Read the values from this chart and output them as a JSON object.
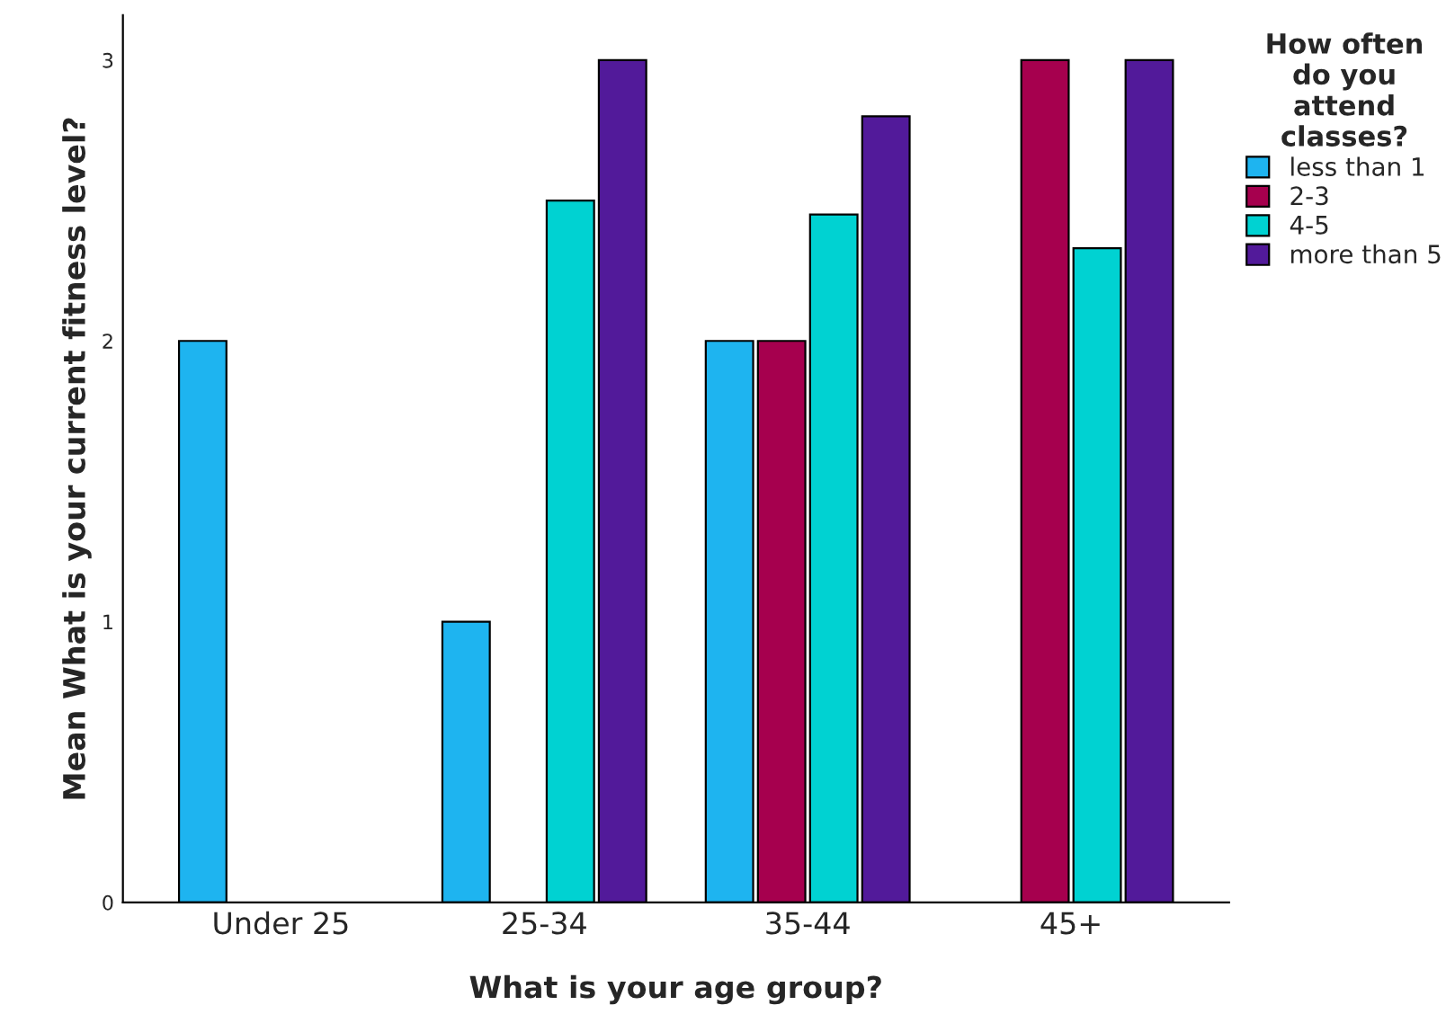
{
  "chart_data": {
    "type": "bar",
    "xlabel": "What is your age group?",
    "ylabel": "Mean What is your current fitness level?",
    "legend_title": "How often\ndo you\nattend\nclasses?",
    "categories": [
      "Under 25",
      "25-34",
      "35-44",
      "45+"
    ],
    "series": [
      {
        "name": "less than 1",
        "color": "#1eb4f0",
        "values": [
          2,
          1,
          2,
          null
        ]
      },
      {
        "name": "2-3",
        "color": "#a6004e",
        "values": [
          null,
          null,
          2,
          3
        ]
      },
      {
        "name": "4-5",
        "color": "#00d2d2",
        "values": [
          null,
          2.5,
          2.45,
          2.33
        ]
      },
      {
        "name": "more than 5",
        "color": "#521a9a",
        "values": [
          null,
          3,
          2.8,
          3
        ]
      }
    ],
    "ylim": [
      0,
      3.16
    ],
    "yticks": [
      0,
      1,
      2,
      3
    ],
    "grid": false,
    "legend": "right"
  }
}
